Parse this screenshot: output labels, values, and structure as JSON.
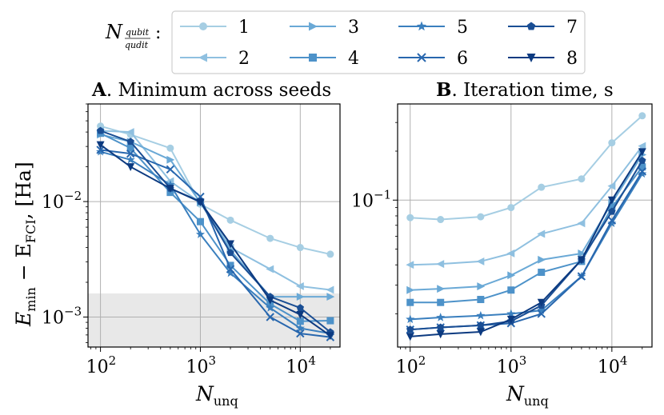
{
  "legend": {
    "label_main": "N",
    "label_num": "qubit",
    "label_den": "qudit",
    "label_colon": ":"
  },
  "palette": [
    "#a6cee3",
    "#8fc0e0",
    "#6aa9d6",
    "#4d92c9",
    "#3a7fbe",
    "#2867ae",
    "#1a4e94",
    "#0c3a80"
  ],
  "chart_data": [
    {
      "id": "A",
      "type": "line",
      "title_bold": "A",
      "title_rest": ". Minimum across seeds",
      "xlabel_main": "N",
      "xlabel_sub": "unq",
      "ylabel_main": "E",
      "ylabel_sub1": "min",
      "ylabel_mid": " − E",
      "ylabel_sub2": "FCI",
      "ylabel_tail": ", [Ha]",
      "xscale": "log",
      "yscale": "log",
      "xlim": [
        75,
        25000
      ],
      "ylim": [
        0.00055,
        0.07
      ],
      "xticks": [
        {
          "value": 100,
          "base": "10",
          "exp": "2"
        },
        {
          "value": 1000,
          "base": "10",
          "exp": "3"
        },
        {
          "value": 10000,
          "base": "10",
          "exp": "4"
        }
      ],
      "yticks": [
        {
          "value": 0.001,
          "base": "10",
          "exp": "−3"
        },
        {
          "value": 0.01,
          "base": "10",
          "exp": "−2"
        }
      ],
      "shaded_band": {
        "y0": 0.00055,
        "y1": 0.0016
      },
      "x": [
        100,
        200,
        500,
        1000,
        2000,
        5000,
        10000,
        20000
      ],
      "series": [
        {
          "name": "1",
          "marker": "circle",
          "values": [
            0.045,
            0.038,
            0.029,
            0.0095,
            0.0069,
            0.0048,
            0.004,
            0.0035
          ]
        },
        {
          "name": "2",
          "marker": "triangle-left",
          "values": [
            0.041,
            0.04,
            0.015,
            0.0098,
            0.004,
            0.0026,
            0.00185,
            0.00172
          ]
        },
        {
          "name": "3",
          "marker": "triangle-right",
          "values": [
            0.038,
            0.033,
            0.023,
            0.0098,
            0.0038,
            0.0015,
            0.0015,
            0.0015
          ]
        },
        {
          "name": "4",
          "marker": "square",
          "values": [
            0.039,
            0.029,
            0.012,
            0.0067,
            0.0028,
            0.0013,
            0.00092,
            0.00093
          ]
        },
        {
          "name": "5",
          "marker": "star",
          "values": [
            0.027,
            0.023,
            0.014,
            0.0052,
            0.0024,
            0.0012,
            0.0008,
            0.00072
          ]
        },
        {
          "name": "6",
          "marker": "x",
          "values": [
            0.028,
            0.026,
            0.019,
            0.011,
            0.0026,
            0.001,
            0.00072,
            0.00067
          ]
        },
        {
          "name": "7",
          "marker": "pentagon",
          "values": [
            0.041,
            0.033,
            0.013,
            0.01,
            0.0036,
            0.0015,
            0.0012,
            0.00074
          ]
        },
        {
          "name": "8",
          "marker": "triangle-down",
          "values": [
            0.031,
            0.02,
            0.013,
            0.0099,
            0.0043,
            0.0014,
            0.00105,
            0.00069
          ]
        }
      ]
    },
    {
      "id": "B",
      "type": "line",
      "title_bold": "B",
      "title_rest": ". Iteration time, s",
      "xlabel_main": "N",
      "xlabel_sub": "unq",
      "xscale": "log",
      "yscale": "log",
      "xlim": [
        75,
        25000
      ],
      "ylim": [
        0.0125,
        0.39
      ],
      "xticks": [
        {
          "value": 100,
          "base": "10",
          "exp": "2"
        },
        {
          "value": 1000,
          "base": "10",
          "exp": "3"
        },
        {
          "value": 10000,
          "base": "10",
          "exp": "4"
        }
      ],
      "yticks": [
        {
          "value": 0.1,
          "base": "10",
          "exp": "−1"
        }
      ],
      "x": [
        100,
        200,
        500,
        1000,
        2000,
        5000,
        10000,
        20000
      ],
      "series": [
        {
          "name": "1",
          "marker": "circle",
          "values": [
            0.078,
            0.076,
            0.079,
            0.09,
            0.12,
            0.135,
            0.225,
            0.33
          ]
        },
        {
          "name": "2",
          "marker": "triangle-left",
          "values": [
            0.04,
            0.0405,
            0.042,
            0.047,
            0.062,
            0.072,
            0.122,
            0.215
          ]
        },
        {
          "name": "3",
          "marker": "triangle-right",
          "values": [
            0.028,
            0.0285,
            0.0295,
            0.0345,
            0.043,
            0.047,
            0.096,
            0.19
          ]
        },
        {
          "name": "4",
          "marker": "square",
          "values": [
            0.0235,
            0.0235,
            0.0245,
            0.028,
            0.036,
            0.042,
            0.09,
            0.16
          ]
        },
        {
          "name": "5",
          "marker": "star",
          "values": [
            0.0185,
            0.019,
            0.0195,
            0.02,
            0.021,
            0.034,
            0.072,
            0.145
          ]
        },
        {
          "name": "6",
          "marker": "x",
          "values": [
            0.016,
            0.0165,
            0.017,
            0.0175,
            0.02,
            0.034,
            0.075,
            0.15
          ]
        },
        {
          "name": "7",
          "marker": "pentagon",
          "values": [
            0.016,
            0.0165,
            0.017,
            0.018,
            0.0225,
            0.043,
            0.085,
            0.175
          ]
        },
        {
          "name": "8",
          "marker": "triangle-down",
          "values": [
            0.0145,
            0.015,
            0.0155,
            0.0185,
            0.0235,
            0.043,
            0.1,
            0.198
          ]
        }
      ]
    }
  ]
}
